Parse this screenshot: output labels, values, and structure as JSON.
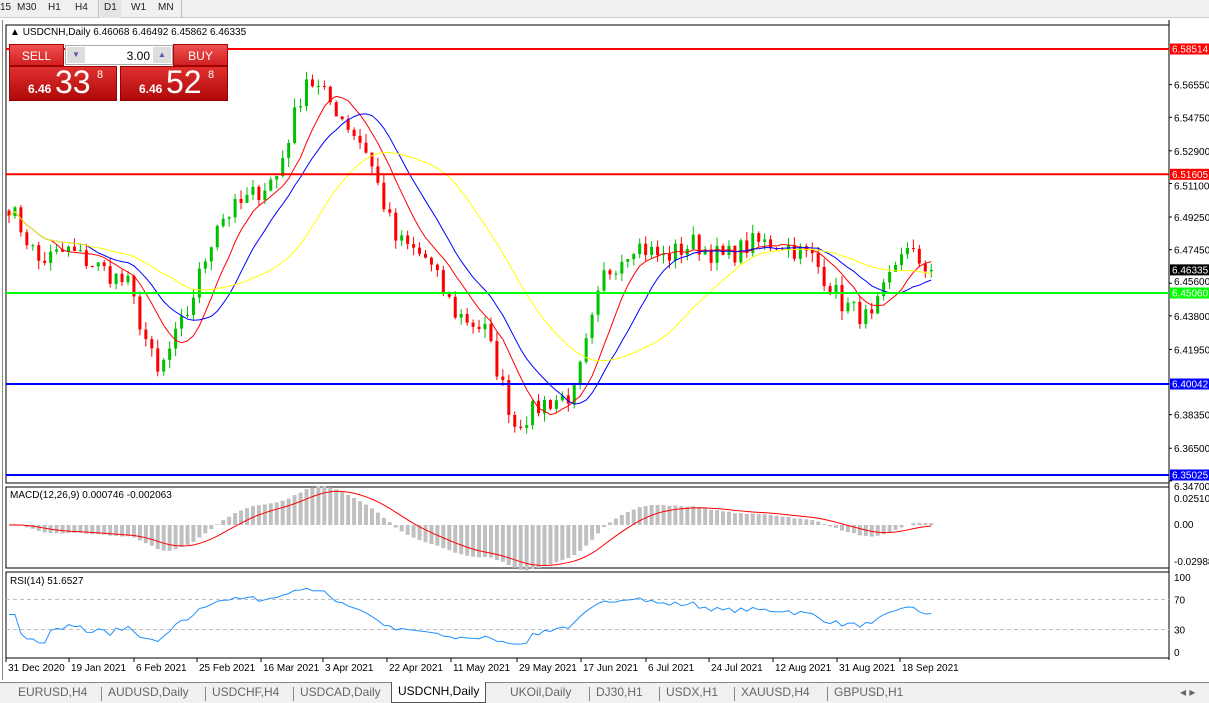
{
  "toolbar": {
    "timeframes": [
      "15",
      "M30",
      "H1",
      "H4",
      "D1",
      "W1",
      "MN"
    ],
    "active": "D1"
  },
  "chart": {
    "symbol_info": "USDCNH,Daily  6.46068 6.46492 6.45862 6.46335"
  },
  "trade_panel": {
    "sell_label": "SELL",
    "buy_label": "BUY",
    "lot": "3.00",
    "sell_prefix": "6.46",
    "sell_big": "33",
    "sell_sup": "8",
    "buy_prefix": "6.46",
    "buy_big": "52",
    "buy_sup": "8"
  },
  "price_axis": {
    "ticks": [
      "6.56550",
      "6.54750",
      "6.52900",
      "6.51100",
      "6.49250",
      "6.47450",
      "6.45600",
      "6.43800",
      "6.41950",
      "6.38350",
      "6.36500",
      "6.34700"
    ],
    "levels": [
      {
        "value": "6.58514",
        "color": "#ff0000"
      },
      {
        "value": "6.51605",
        "color": "#ff0000"
      },
      {
        "value": "6.45060",
        "color": "#00ff00"
      },
      {
        "value": "6.40042",
        "color": "#0000ff"
      },
      {
        "value": "6.35025",
        "color": "#0000ff"
      }
    ],
    "current": "6.46335"
  },
  "macd": {
    "label": "MACD(12,26,9) 0.000746 -0.002063",
    "ticks": [
      "0.025108",
      "0.00",
      "-0.02988"
    ]
  },
  "rsi": {
    "label": "RSI(14) 51.6527",
    "ticks": [
      "100",
      "70",
      "30",
      "0"
    ]
  },
  "date_axis": [
    "31 Dec 2020",
    "19 Jan 2021",
    "6 Feb 2021",
    "25 Feb 2021",
    "16 Mar 2021",
    "3 Apr 2021",
    "22 Apr 2021",
    "11 May 2021",
    "29 May 2021",
    "17 Jun 2021",
    "6 Jul 2021",
    "24 Jul 2021",
    "12 Aug 2021",
    "31 Aug 2021",
    "18 Sep 2021"
  ],
  "chart_data": {
    "type": "candlestick",
    "symbol": "USDCNH",
    "period": "Daily",
    "ylim": [
      6.347,
      6.588
    ],
    "close_approx_every_5_bars": [
      6.499,
      6.468,
      6.474,
      6.465,
      6.455,
      6.405,
      6.44,
      6.49,
      6.502,
      6.515,
      6.57,
      6.552,
      6.53,
      6.48,
      6.47,
      6.44,
      6.43,
      6.378,
      6.39,
      6.395,
      6.46,
      6.478,
      6.47,
      6.478,
      6.47,
      6.478,
      6.478,
      6.47,
      6.445,
      6.435,
      6.475,
      6.4634
    ],
    "colors": {
      "up": "#00c000",
      "down": "#ff0000",
      "ma_fast": "#ff0000",
      "ma_mid": "#0000ff",
      "ma_slow": "#ffff00"
    }
  },
  "tabs": [
    "EURUSD,H4",
    "AUDUSD,Daily",
    "USDCHF,H4",
    "USDCAD,Daily",
    "USDCNH,Daily",
    "UKOil,Daily",
    "DJ30,H1",
    "USDX,H1",
    "XAUUSD,H4",
    "GBPUSD,H1"
  ],
  "active_tab": "USDCNH,Daily"
}
